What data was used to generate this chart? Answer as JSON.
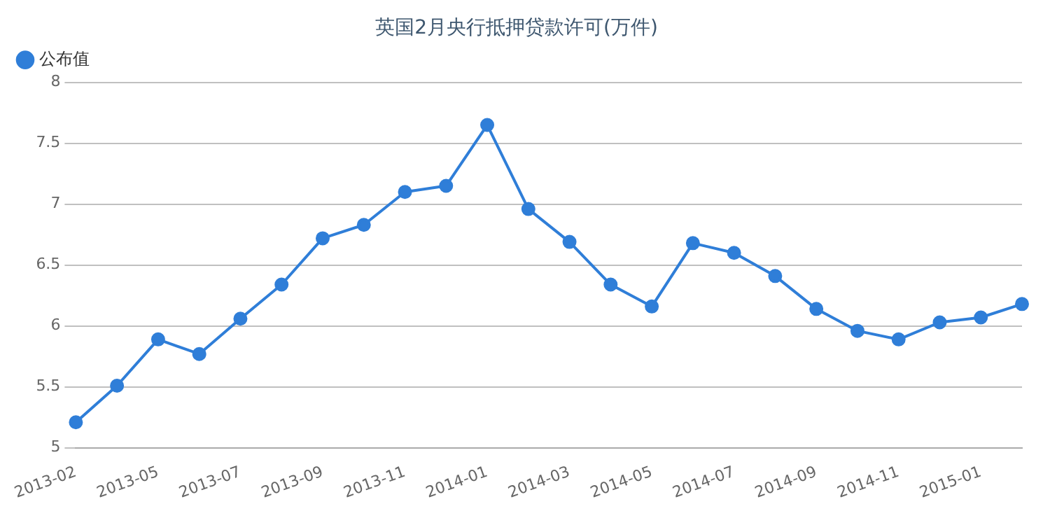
{
  "chart_data": {
    "type": "line",
    "title": "英国2月央行抵押贷款许可(万件)",
    "categories": [
      "2013-02",
      null,
      "2013-05",
      null,
      "2013-07",
      null,
      "2013-09",
      null,
      "2013-11",
      null,
      "2014-01",
      null,
      "2014-03",
      null,
      "2014-05",
      null,
      "2014-07",
      null,
      "2014-09",
      null,
      "2014-11",
      null,
      "2015-01",
      null
    ],
    "series": [
      {
        "name": "公布值",
        "color": "#2f7ed8",
        "values": [
          5.21,
          5.51,
          5.89,
          5.77,
          6.06,
          6.34,
          6.72,
          6.83,
          7.1,
          7.15,
          7.65,
          6.96,
          6.69,
          6.34,
          6.16,
          6.68,
          6.6,
          6.41,
          6.14,
          5.96,
          5.89,
          6.03,
          6.07,
          6.18
        ]
      }
    ],
    "ylim": [
      5,
      8
    ],
    "yticks": [
      5,
      5.5,
      6,
      6.5,
      7,
      7.5,
      8
    ],
    "grid": "y",
    "legend": "top left",
    "marker": "circle",
    "line_style": "solid"
  }
}
